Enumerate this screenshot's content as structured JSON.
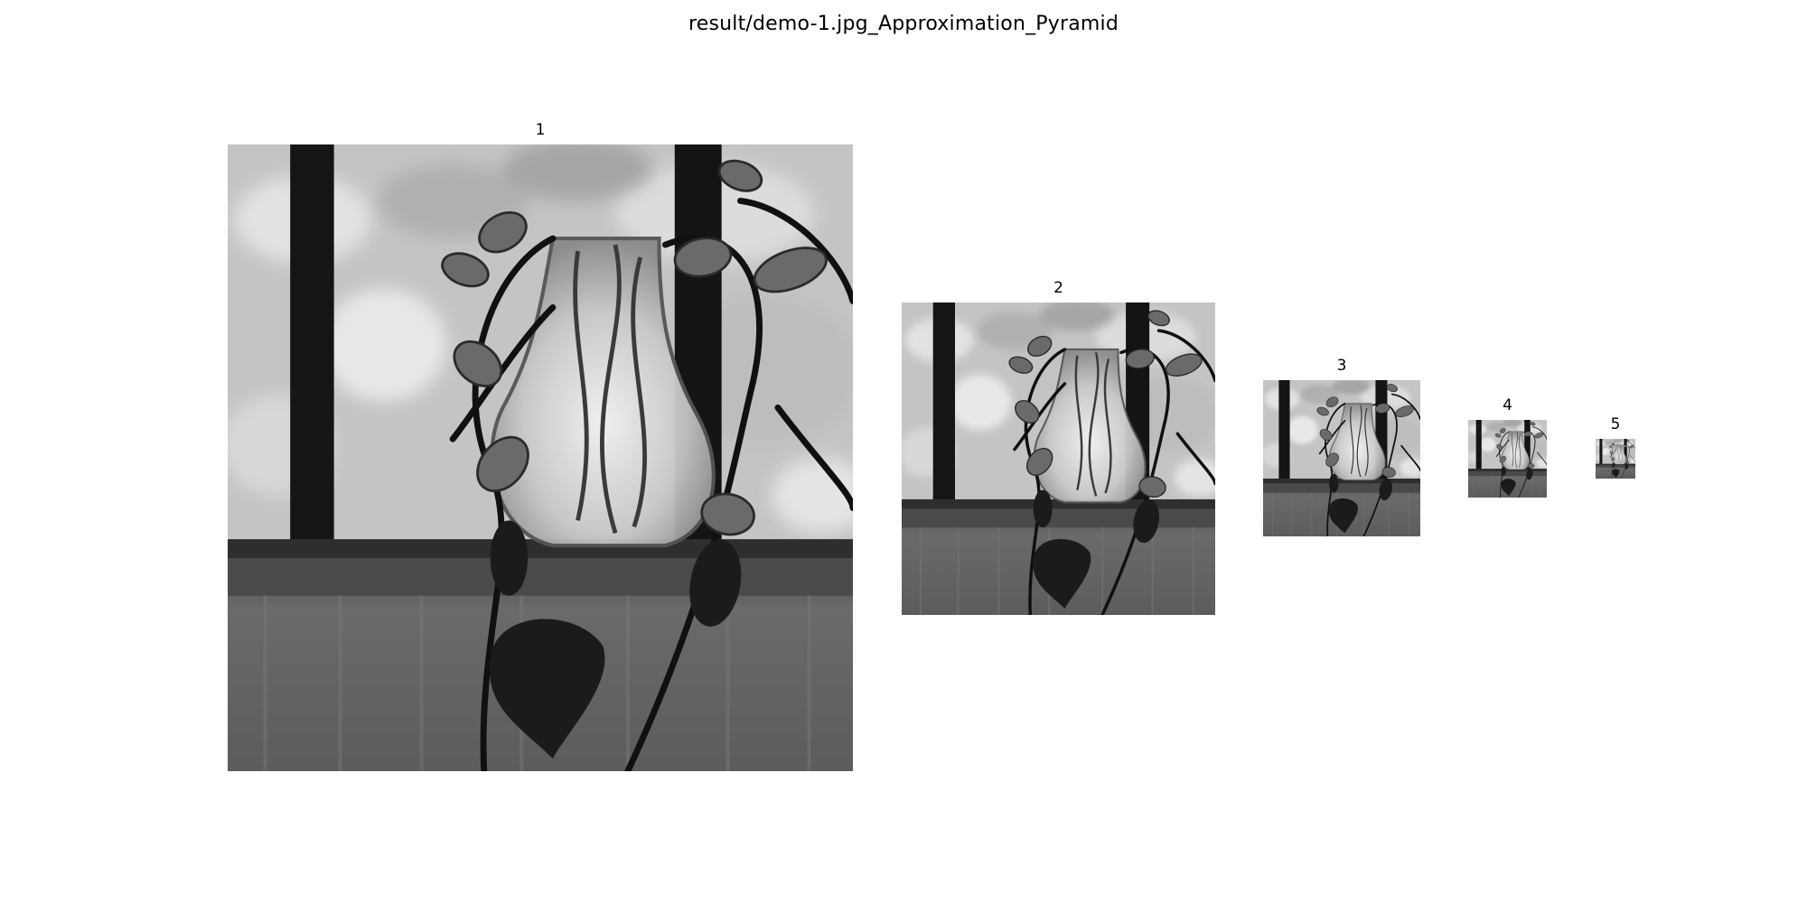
{
  "figure": {
    "title": "result/demo-1.jpg_Approximation_Pyramid"
  },
  "panels": [
    {
      "label": "1"
    },
    {
      "label": "2"
    },
    {
      "label": "3"
    },
    {
      "label": "4"
    },
    {
      "label": "5"
    }
  ]
}
